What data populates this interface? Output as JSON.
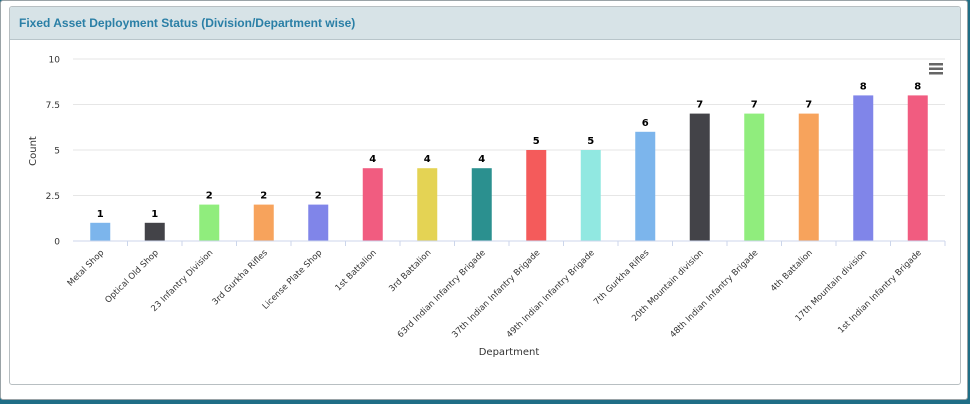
{
  "panel": {
    "title": "Fixed Asset Deployment Status (Division/Department wise)"
  },
  "menu_icon": "hamburger-menu-icon",
  "chart_data": {
    "type": "bar",
    "title": "",
    "xlabel": "Department",
    "ylabel": "Count",
    "ylim": [
      0,
      10
    ],
    "yticks": [
      "0",
      "2.5",
      "5",
      "7.5",
      "10"
    ],
    "ytick_values": [
      0,
      2.5,
      5,
      7.5,
      10
    ],
    "grid": true,
    "categories": [
      "Metal Shop",
      "Optical Old Shop",
      "23 Infantry Division",
      "3rd Gurkha Rifles",
      "License Plate Shop",
      "1st Battalion",
      "3rd Battalion",
      "63rd Indian Infantry Brigade",
      "37th Indian Infantry Brigade",
      "49th Indian Infantry Brigade",
      "7th Gurkha Rifles",
      "20th Mountain division",
      "48th Indian Infantry Brigade",
      "4th Battalion",
      "17th Mountain division",
      "1st Indian Infantry Brigade"
    ],
    "values": [
      1,
      1,
      2,
      2,
      2,
      4,
      4,
      4,
      5,
      5,
      6,
      7,
      7,
      7,
      8,
      8
    ],
    "colors": [
      "#7cb5ec",
      "#434348",
      "#90ed7d",
      "#f7a35c",
      "#8085e9",
      "#f15c80",
      "#e4d354",
      "#2b908f",
      "#f45b5b",
      "#91e8e1",
      "#7cb5ec",
      "#434348",
      "#90ed7d",
      "#f7a35c",
      "#8085e9",
      "#f15c80"
    ]
  }
}
